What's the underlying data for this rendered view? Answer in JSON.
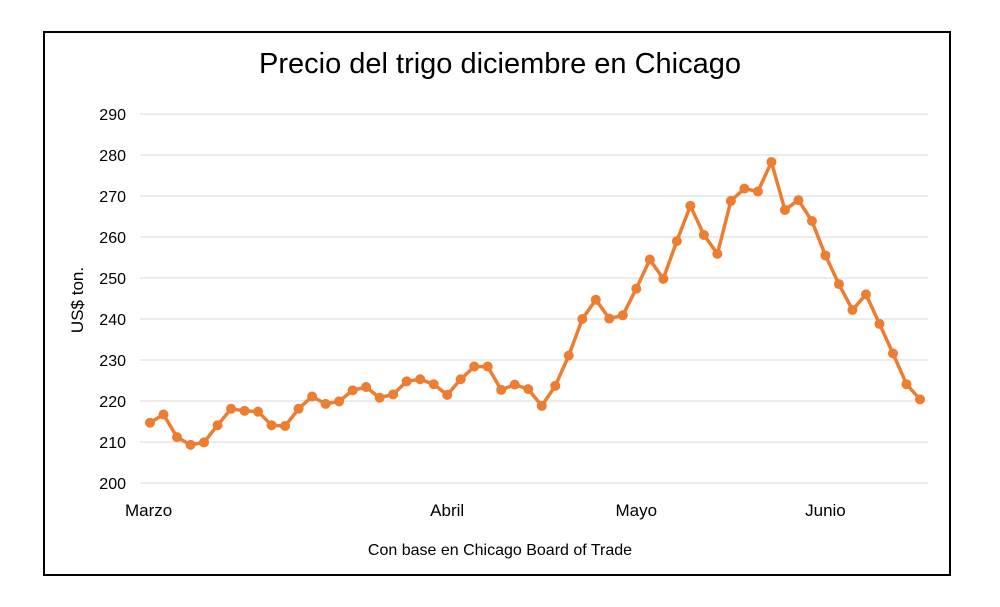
{
  "chart_data": {
    "type": "line",
    "title": "Precio del trigo diciembre en Chicago",
    "ylabel": "US$ ton.",
    "xlabel": "",
    "source_note": "Con base en Chicago Board of Trade",
    "ylim": [
      200,
      290
    ],
    "y_ticks": [
      200,
      210,
      220,
      230,
      240,
      250,
      260,
      270,
      280,
      290
    ],
    "x_tick_labels": [
      {
        "label": "Marzo",
        "index": 0
      },
      {
        "label": "Abril",
        "index": 22
      },
      {
        "label": "Mayo",
        "index": 36
      },
      {
        "label": "Junio",
        "index": 50
      }
    ],
    "grid": "horizontal",
    "color": "#ED7D31",
    "series": [
      {
        "values": [
          214.7,
          216.7,
          211.2,
          209.3,
          209.9,
          214.1,
          218.1,
          217.6,
          217.4,
          214.1,
          213.9,
          218.1,
          221.1,
          219.3,
          219.9,
          222.6,
          223.4,
          220.8,
          221.6,
          224.8,
          225.3,
          224.1,
          221.5,
          225.3,
          228.4,
          228.4,
          222.7,
          224.0,
          222.9,
          218.8,
          223.7,
          231.1,
          240.0,
          244.7,
          240.1,
          240.9,
          247.4,
          254.5,
          249.8,
          259.0,
          267.6,
          260.5,
          255.9,
          268.8,
          271.8,
          271.1,
          278.3,
          266.6,
          269.0,
          263.9,
          255.5,
          248.5,
          242.2,
          246.0,
          238.8,
          231.6,
          224.1,
          220.4
        ]
      }
    ]
  }
}
